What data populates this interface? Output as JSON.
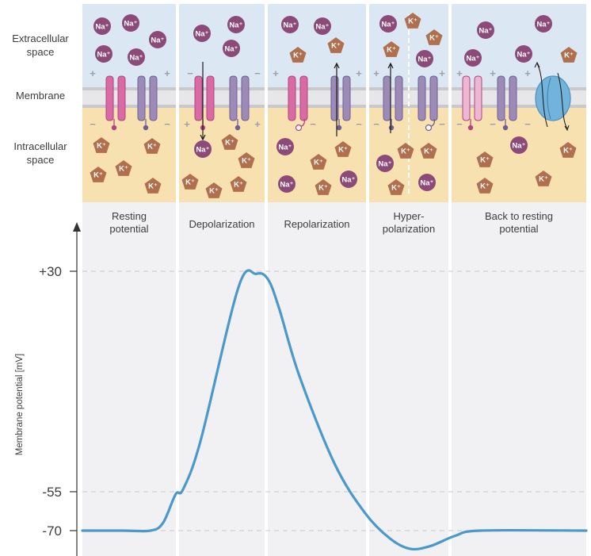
{
  "side_labels": {
    "extracellular": [
      "Extracellular",
      "space"
    ],
    "membrane": "Membrane",
    "intracellular": [
      "Intracellular",
      "space"
    ]
  },
  "ions": {
    "sodium": "Na⁺",
    "potassium": "K⁺"
  },
  "charges": {
    "plus": "+",
    "minus": "−"
  },
  "phases": [
    {
      "lines": [
        "Resting",
        "potential"
      ]
    },
    {
      "lines": [
        "Depolarization"
      ]
    },
    {
      "lines": [
        "Repolarization"
      ]
    },
    {
      "lines": [
        "Hyper-",
        "polarization"
      ]
    },
    {
      "lines": [
        "Back to resting",
        "potential"
      ]
    }
  ],
  "chart_data": {
    "type": "line",
    "ylabel": "Membrane potential [mV]",
    "yticks": [
      "+30",
      "-55",
      "-70"
    ],
    "reference_lines": [
      30,
      -55,
      -70
    ],
    "series": [
      {
        "x": [
          0.0,
          0.08,
          0.135,
          0.16,
          0.185,
          0.2,
          0.235,
          0.31,
          0.345,
          0.368,
          0.39,
          0.43,
          0.5,
          0.56,
          0.61,
          0.65,
          0.69,
          0.74,
          0.79,
          1.0
        ],
        "y": [
          -70,
          -70,
          -70,
          -67,
          -56,
          -54,
          -35,
          24,
          29,
          27,
          16,
          -10,
          -44,
          -63,
          -73,
          -77,
          -76,
          -72,
          -70,
          -70
        ]
      }
    ],
    "colors": {
      "line": "#4a99c9",
      "sodium": "#8b4a77",
      "potassium": "#b06f4e"
    }
  }
}
